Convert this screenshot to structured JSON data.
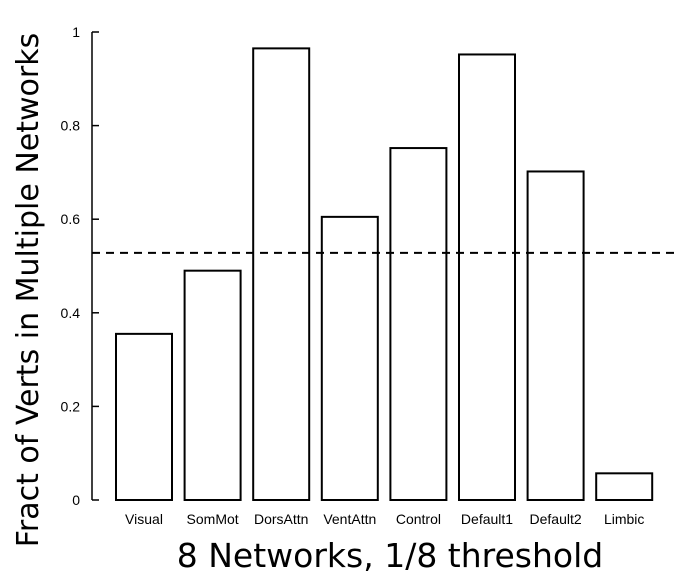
{
  "chart_data": {
    "type": "bar",
    "categories": [
      "Visual",
      "SomMot",
      "DorsAttn",
      "VentAttn",
      "Control",
      "Default1",
      "Default2",
      "Limbic"
    ],
    "values": [
      0.355,
      0.49,
      0.965,
      0.605,
      0.752,
      0.952,
      0.702,
      0.057
    ],
    "title": "",
    "xlabel": "8 Networks, 1/8 threshold",
    "ylabel": "Fract of Verts in Multiple Networks",
    "ylim": [
      0,
      1
    ],
    "yticks": [
      "0",
      "0.2",
      "0.4",
      "0.6",
      "0.8",
      "1"
    ],
    "reference_line": {
      "value": 0.528,
      "style": "dashed"
    },
    "bar_fill": "#ffffff",
    "bar_stroke": "#000000",
    "grid": false
  }
}
